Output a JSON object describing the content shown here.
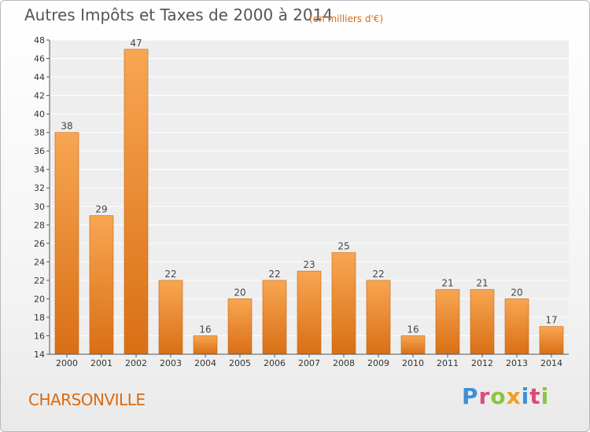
{
  "title": "Autres Impôts et Taxes de 2000 à 2014",
  "subtitle": "(en milliers d'€)",
  "commune": "CHARSONVILLE",
  "logo": {
    "letters": [
      "P",
      "r",
      "o",
      "x",
      "i",
      "t",
      "i"
    ]
  },
  "colors": {
    "bar_top": "#f8a652",
    "bar_bottom": "#d96f15",
    "accent": "#d96a12"
  },
  "chart_data": {
    "type": "bar",
    "title": "Autres Impôts et Taxes de 2000 à 2014",
    "subtitle": "(en milliers d'€)",
    "categories": [
      "2000",
      "2001",
      "2002",
      "2003",
      "2004",
      "2005",
      "2006",
      "2007",
      "2008",
      "2009",
      "2010",
      "2011",
      "2012",
      "2013",
      "2014"
    ],
    "values": [
      38,
      29,
      47,
      22,
      16,
      20,
      22,
      23,
      25,
      22,
      16,
      21,
      21,
      20,
      17
    ],
    "ylim": [
      14,
      48
    ],
    "yticks": [
      14,
      16,
      18,
      20,
      22,
      24,
      26,
      28,
      30,
      32,
      34,
      36,
      38,
      40,
      42,
      44,
      46,
      48
    ],
    "grid": true,
    "legend": "none"
  }
}
